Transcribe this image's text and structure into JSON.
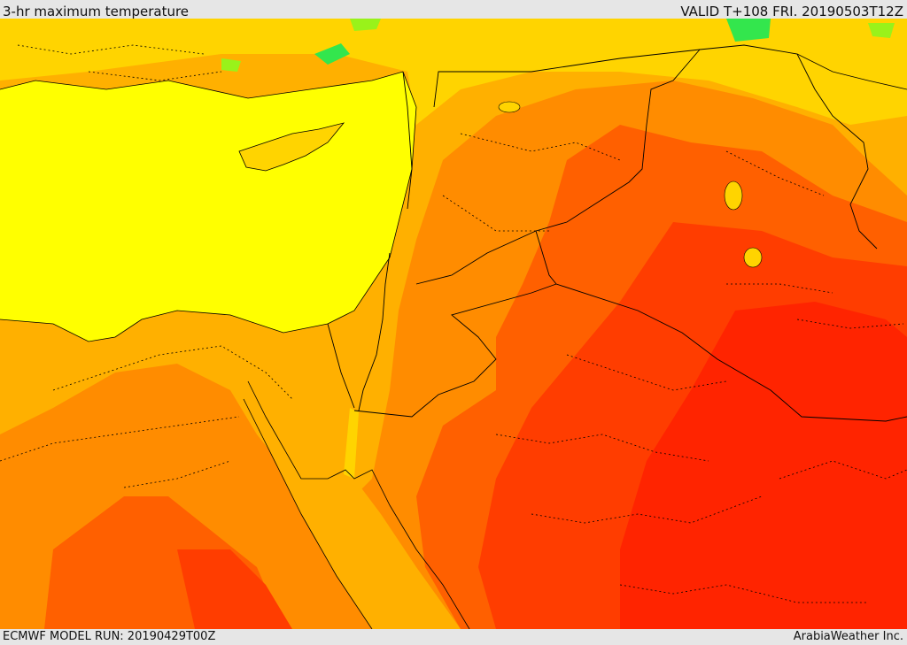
{
  "header": {
    "title": "3-hr maximum temperature",
    "valid": "VALID T+108 FRI. 20190503T12Z"
  },
  "footer": {
    "model_run": "ECMWF MODEL RUN: 20190429T00Z",
    "credit": "ArabiaWeather Inc."
  },
  "colors": {
    "sea": "#ffff00",
    "cool_green": "#33e64d",
    "light_green": "#99f21a",
    "yellow_orange": "#ffd400",
    "amber": "#ffb000",
    "orange": "#ff8c00",
    "deep_orange": "#ff6000",
    "red_orange": "#ff3d00",
    "red": "#ff2400",
    "border": "#000000"
  }
}
